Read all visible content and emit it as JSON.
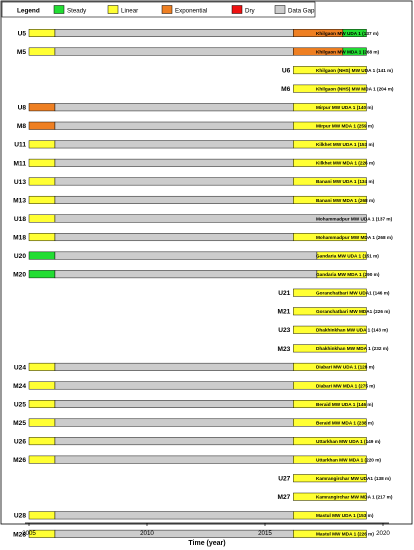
{
  "chart_data": {
    "type": "gantt",
    "x_range": [
      2005,
      2020
    ],
    "x_ticks": [
      "2005",
      "2010",
      "2015",
      "2020"
    ],
    "x_axis_label": "Time (year)",
    "legend": {
      "title": "Legend",
      "position": "top-left",
      "items": [
        {
          "key": "steady",
          "label": "Steady",
          "color": "#22dd33"
        },
        {
          "key": "linear",
          "label": "Linear",
          "color": "#ffff33"
        },
        {
          "key": "exponential",
          "label": "Exponential",
          "color": "#ee7f22"
        },
        {
          "key": "dry",
          "label": "Dry",
          "color": "#ee1111"
        },
        {
          "key": "gap",
          "label": "Data Gap",
          "color": "#cccccc"
        }
      ]
    },
    "rows": [
      {
        "code": "U5",
        "well": "Khilgaon MW UDA 1 (137 m)",
        "segments": [
          [
            "linear",
            2005.0,
            2006.1
          ],
          [
            "gap",
            2006.1,
            2016.2
          ],
          [
            "exponential",
            2016.2,
            2018.3
          ],
          [
            "steady",
            2018.3,
            2019.3
          ]
        ]
      },
      {
        "code": "M5",
        "well": "Khilgaon MW MDA 1 (268 m)",
        "segments": [
          [
            "linear",
            2005.0,
            2006.1
          ],
          [
            "gap",
            2006.1,
            2016.2
          ],
          [
            "exponential",
            2016.2,
            2018.3
          ],
          [
            "steady",
            2018.3,
            2019.3
          ]
        ]
      },
      {
        "code": "U6",
        "well": "Khilgaon (NHS) MW UDA 1 (141 m)",
        "segments": [
          [
            "linear",
            2016.2,
            2019.3
          ]
        ]
      },
      {
        "code": "M6",
        "well": "Khilgaon (NHS) MW MDA 1 (204 m)",
        "segments": [
          [
            "linear",
            2016.2,
            2019.3
          ]
        ]
      },
      {
        "code": "U8",
        "well": "Mirpur MW UDA 1 (140 m)",
        "segments": [
          [
            "exponential",
            2005.0,
            2006.1
          ],
          [
            "gap",
            2006.1,
            2016.2
          ],
          [
            "linear",
            2016.2,
            2019.3
          ]
        ]
      },
      {
        "code": "M8",
        "well": "Mirpur MW MDA 1 (259 m)",
        "segments": [
          [
            "exponential",
            2005.0,
            2006.1
          ],
          [
            "gap",
            2006.1,
            2016.2
          ],
          [
            "linear",
            2016.2,
            2019.3
          ]
        ]
      },
      {
        "code": "U11",
        "well": "Kilkhet MW UDA 1 (153 m)",
        "segments": [
          [
            "linear",
            2005.0,
            2006.1
          ],
          [
            "gap",
            2006.1,
            2016.2
          ],
          [
            "linear",
            2016.2,
            2019.3
          ]
        ]
      },
      {
        "code": "M11",
        "well": "Kilkhet MW MDA 1 (226 m)",
        "segments": [
          [
            "linear",
            2005.0,
            2006.1
          ],
          [
            "gap",
            2006.1,
            2016.2
          ],
          [
            "linear",
            2016.2,
            2019.3
          ]
        ]
      },
      {
        "code": "U13",
        "well": "Banani MW UDA 1 (134 m)",
        "segments": [
          [
            "linear",
            2005.0,
            2006.1
          ],
          [
            "gap",
            2006.1,
            2016.2
          ],
          [
            "linear",
            2016.2,
            2019.3
          ]
        ]
      },
      {
        "code": "M13",
        "well": "Banani  MW MDA 1 (268 m)",
        "segments": [
          [
            "linear",
            2005.0,
            2006.1
          ],
          [
            "gap",
            2006.1,
            2016.2
          ],
          [
            "linear",
            2016.2,
            2019.3
          ]
        ]
      },
      {
        "code": "U18",
        "well": "Mohammadpur MW UDA 1 (137 m)",
        "segments": [
          [
            "linear",
            2005.0,
            2006.1
          ],
          [
            "gap",
            2006.1,
            2019.3
          ]
        ]
      },
      {
        "code": "M18",
        "well": "Mohammadpur MW MDA 1 (268 m)",
        "segments": [
          [
            "linear",
            2005.0,
            2006.1
          ],
          [
            "gap",
            2006.1,
            2016.2
          ],
          [
            "linear",
            2016.2,
            2019.3
          ]
        ]
      },
      {
        "code": "U20",
        "well": "Gandaria  MW UDA 1 (151 m)",
        "segments": [
          [
            "steady",
            2005.0,
            2006.1
          ],
          [
            "gap",
            2006.1,
            2017.2
          ],
          [
            "linear",
            2017.2,
            2019.3
          ]
        ]
      },
      {
        "code": "M20",
        "well": "Gandaria  MW MDA 1 (290 m)",
        "segments": [
          [
            "steady",
            2005.0,
            2006.1
          ],
          [
            "gap",
            2006.1,
            2017.2
          ],
          [
            "linear",
            2017.2,
            2019.3
          ]
        ]
      },
      {
        "code": "U21",
        "well": "Goranchatbari MW UDA1 (146 m)",
        "segments": [
          [
            "linear",
            2016.2,
            2019.3
          ]
        ]
      },
      {
        "code": "M21",
        "well": "Goranchatbari MW MDA1 (226 m)",
        "segments": [
          [
            "linear",
            2016.2,
            2019.3
          ]
        ]
      },
      {
        "code": "U23",
        "well": "Dhakhinkhan MW UDA 1 (143 m)",
        "segments": [
          [
            "linear",
            2016.2,
            2019.3
          ]
        ]
      },
      {
        "code": "M23",
        "well": "Dhakhinkhan MW MDA 1 (232 m)",
        "segments": [
          [
            "linear",
            2016.2,
            2019.3
          ]
        ]
      },
      {
        "code": "U24",
        "well": "Diabari  MW UDA 1 (128 m)",
        "segments": [
          [
            "linear",
            2005.0,
            2006.1
          ],
          [
            "gap",
            2006.1,
            2016.2
          ],
          [
            "linear",
            2016.2,
            2019.3
          ]
        ]
      },
      {
        "code": "M24",
        "well": "Diabari  MW MDA 1 (275 m)",
        "segments": [
          [
            "linear",
            2005.0,
            2006.1
          ],
          [
            "gap",
            2006.1,
            2016.2
          ],
          [
            "linear",
            2016.2,
            2019.3
          ]
        ]
      },
      {
        "code": "U25",
        "well": "Beraid  MW UDA 1 (146 m)",
        "segments": [
          [
            "linear",
            2005.0,
            2006.1
          ],
          [
            "gap",
            2006.1,
            2016.2
          ],
          [
            "linear",
            2016.2,
            2019.3
          ]
        ]
      },
      {
        "code": "M25",
        "well": "Beraid  MW MDA 1 (238 m)",
        "segments": [
          [
            "linear",
            2005.0,
            2006.1
          ],
          [
            "gap",
            2006.1,
            2016.2
          ],
          [
            "linear",
            2016.2,
            2019.3
          ]
        ]
      },
      {
        "code": "U26",
        "well": "Uttarkhan MW UDA 1 (149 m)",
        "segments": [
          [
            "linear",
            2005.0,
            2006.1
          ],
          [
            "gap",
            2006.1,
            2016.2
          ],
          [
            "linear",
            2016.2,
            2019.3
          ]
        ]
      },
      {
        "code": "M26",
        "well": "Uttarkhan MW MDA 1 (220 m)",
        "segments": [
          [
            "linear",
            2005.0,
            2006.1
          ],
          [
            "gap",
            2006.1,
            2016.2
          ],
          [
            "linear",
            2016.2,
            2019.3
          ]
        ]
      },
      {
        "code": "U27",
        "well": "Kamrangirchar MW UDA1 (138 m)",
        "segments": [
          [
            "linear",
            2016.2,
            2019.3
          ]
        ]
      },
      {
        "code": "M27",
        "well": "Kamrangirchar MW MDA 1 (217 m)",
        "segments": [
          [
            "linear",
            2016.2,
            2019.3
          ]
        ]
      },
      {
        "code": "U28",
        "well": "Mastul  MW UDA 1 (153 m)",
        "segments": [
          [
            "linear",
            2005.0,
            2006.1
          ],
          [
            "gap",
            2006.1,
            2016.2
          ],
          [
            "linear",
            2016.2,
            2019.3
          ]
        ]
      },
      {
        "code": "M28",
        "well": "Mastul  MW MDA 1 (226 m)",
        "segments": [
          [
            "linear",
            2005.0,
            2006.1
          ],
          [
            "gap",
            2006.1,
            2016.2
          ],
          [
            "linear",
            2016.2,
            2019.3
          ]
        ]
      }
    ]
  }
}
